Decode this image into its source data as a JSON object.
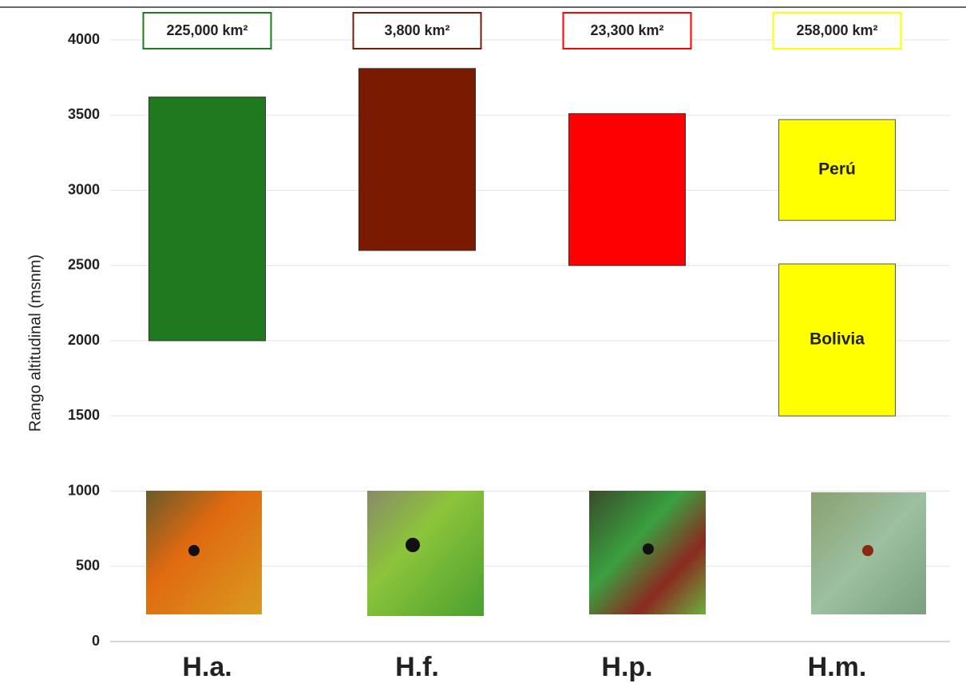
{
  "chart_data": {
    "type": "range-bar",
    "y_label": "Rango altitudinal (msnm)",
    "ylim": [
      0,
      4000
    ],
    "yticks": [
      0,
      500,
      1000,
      1500,
      2000,
      2500,
      3000,
      3500,
      4000
    ],
    "grid": true,
    "categories": [
      {
        "name": "H.a.",
        "area": "225,000 km²",
        "color": "#1f7a1f",
        "ranges": [
          {
            "low": 2000,
            "high": 3620
          }
        ]
      },
      {
        "name": "H.f.",
        "area": "3,800 km²",
        "color": "#7a1a00",
        "ranges": [
          {
            "low": 2600,
            "high": 3810
          }
        ]
      },
      {
        "name": "H.p.",
        "area": "23,300 km²",
        "color": "#ff0000",
        "ranges": [
          {
            "low": 2500,
            "high": 3510
          }
        ]
      },
      {
        "name": "H.m.",
        "area": "258,000 km²",
        "color": "#ffff00",
        "ranges": [
          {
            "low": 2800,
            "high": 3470,
            "label": "Perú"
          },
          {
            "low": 1500,
            "high": 2510,
            "label": "Bolivia"
          }
        ]
      }
    ]
  }
}
